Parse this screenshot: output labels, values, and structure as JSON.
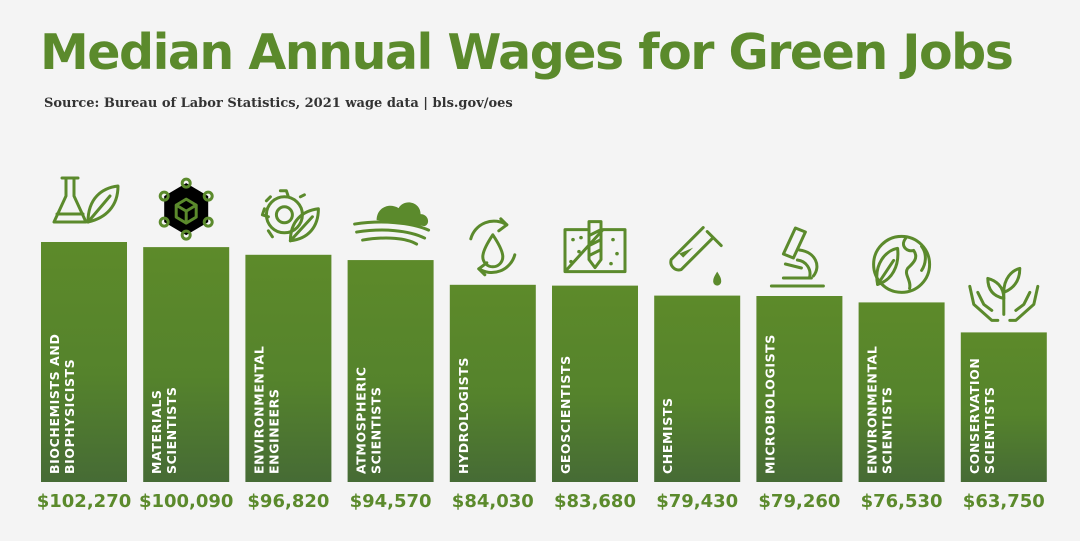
{
  "header": {
    "title": "Median Annual Wages for Green Jobs",
    "subtitle": "Source: Bureau of Labor Statistics, 2021 wage data | bls.gov/oes"
  },
  "colors": {
    "title": "#5b8a2c",
    "bar_top": "#5d8a2a",
    "bar_bottom": "#466b35",
    "value_text": "#5b8a2c",
    "background": "#f4f4f4"
  },
  "chart_data": {
    "type": "bar",
    "title": "Median Annual Wages for Green Jobs",
    "subtitle": "Source: Bureau of Labor Statistics, 2021 wage data | bls.gov/oes",
    "categories": [
      [
        "BIOCHEMISTS AND",
        "BIOPHYSICISTS"
      ],
      [
        "MATERIALS",
        "SCIENTISTS"
      ],
      [
        "ENVIRONMENTAL",
        "ENGINEERS"
      ],
      [
        "ATMOSPHERIC",
        "SCIENTISTS"
      ],
      [
        "HYDROLOGISTS"
      ],
      [
        "GEOSCIENTISTS"
      ],
      [
        "CHEMISTS"
      ],
      [
        "MICROBIOLOGISTS"
      ],
      [
        "ENVIRONMENTAL",
        "SCIENTISTS"
      ],
      [
        "CONSERVATION",
        "SCIENTISTS"
      ]
    ],
    "values": [
      102270,
      100090,
      96820,
      94570,
      84030,
      83680,
      79430,
      79260,
      76530,
      63750
    ],
    "value_labels": [
      "$102,270",
      "$100,090",
      "$96,820",
      "$94,570",
      "$84,030",
      "$83,680",
      "$79,430",
      "$79,260",
      "$76,530",
      "$63,750"
    ],
    "icons": [
      "flask-leaf-icon",
      "molecule-cube-icon",
      "gear-leaf-icon",
      "cloud-wind-icon",
      "water-cycle-icon",
      "soil-drill-icon",
      "test-tube-icon",
      "microscope-icon",
      "globe-leaf-icon",
      "hands-plant-icon"
    ],
    "grid": false,
    "legend": "none"
  }
}
